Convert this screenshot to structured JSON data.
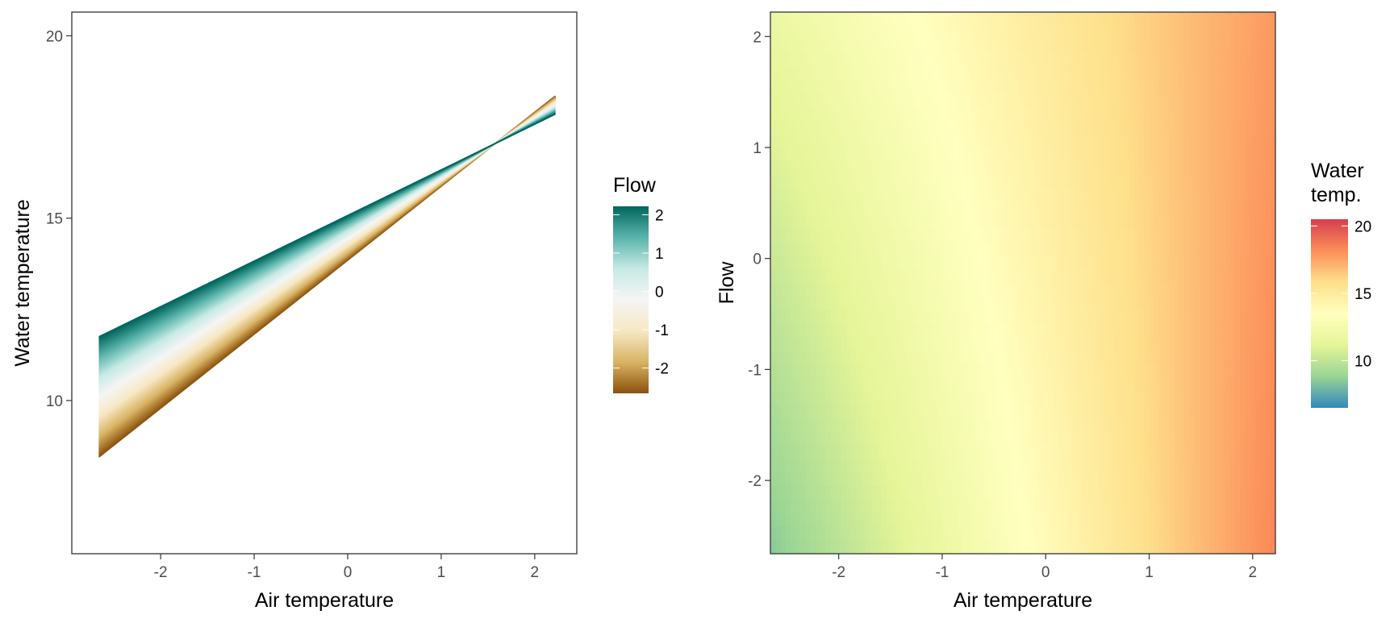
{
  "chart_data": [
    {
      "type": "area",
      "title": "",
      "xlabel": "Air temperature",
      "ylabel": "Water temperature",
      "xlim": [
        -2.95,
        2.45
      ],
      "ylim": [
        5.8,
        20.65
      ],
      "x_ticks": [
        -2,
        -1,
        0,
        1,
        2
      ],
      "y_ticks": [
        10,
        15,
        20
      ],
      "grid": false,
      "description_of_series": "Water temperature predicted as a linear function of air temperature, one line per flow level",
      "x_range": [
        -2.66,
        2.22
      ],
      "series_flow_min": -2.66,
      "series_flow_max": 2.22,
      "lines": [
        {
          "flow": -2.66,
          "x": [
            -2.66,
            2.22
          ],
          "y": [
            8.45,
            18.35
          ]
        },
        {
          "flow": 2.22,
          "x": [
            -2.66,
            2.22
          ],
          "y": [
            11.75,
            17.85
          ]
        }
      ],
      "legend": {
        "title": "Flow",
        "position": "right",
        "ticks": [
          2,
          1,
          0,
          -1,
          -2
        ],
        "range": [
          -2.66,
          2.22
        ],
        "colors": [
          "#8c510a",
          "#d8b365",
          "#f6e8c3",
          "#f5f5f5",
          "#c7eae5",
          "#5ab4ac",
          "#01665e"
        ]
      }
    },
    {
      "type": "heatmap",
      "title": "",
      "xlabel": "Air temperature",
      "ylabel": "Flow",
      "xlim": [
        -2.66,
        2.22
      ],
      "ylim": [
        -2.66,
        2.22
      ],
      "x_ticks": [
        -2,
        -1,
        0,
        1,
        2
      ],
      "y_ticks": [
        -2,
        -1,
        0,
        1,
        2
      ],
      "grid": false,
      "fill_variable": "Water temperature",
      "corner_values": {
        "air_min_flow_min": 8.45,
        "air_min_flow_max": 11.75,
        "air_max_flow_min": 18.35,
        "air_max_flow_max": 17.85
      },
      "legend": {
        "title_lines": [
          "Water",
          "temp."
        ],
        "position": "right",
        "ticks": [
          20,
          15,
          10
        ],
        "range": [
          6.5,
          20.5
        ],
        "colors": [
          "#3288bd",
          "#99d594",
          "#e6f598",
          "#ffffbf",
          "#fee08b",
          "#fc8d59",
          "#d53e4f"
        ]
      }
    }
  ]
}
